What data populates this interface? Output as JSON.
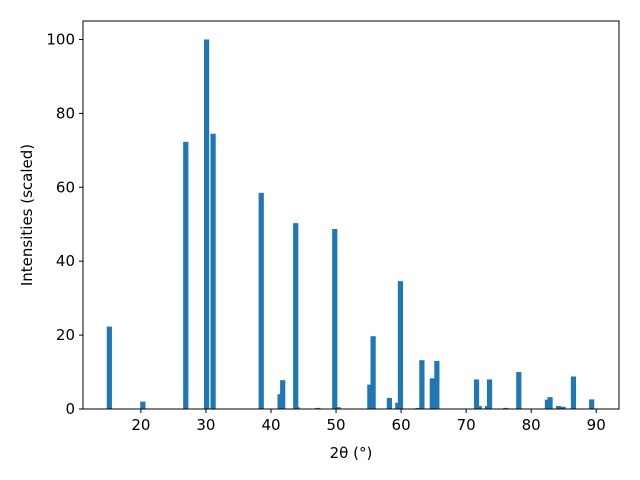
{
  "chart_data": {
    "type": "bar",
    "xlabel": "2θ (°)",
    "ylabel": "Intensities (scaled)",
    "color": "#1f77b4",
    "x": [
      15.15,
      20.3,
      26.9,
      30.1,
      31.1,
      38.5,
      41.4,
      41.8,
      43.8,
      44.0,
      47.2,
      49.8,
      50.3,
      55.2,
      55.7,
      58.2,
      59.5,
      59.9,
      62.6,
      63.2,
      64.8,
      65.5,
      71.6,
      72.0,
      73.3,
      73.6,
      76.1,
      78.1,
      82.5,
      82.9,
      84.2,
      84.9,
      86.5,
      89.3
    ],
    "values": [
      22.3,
      2.0,
      72.3,
      100,
      74.5,
      58.5,
      4.0,
      7.8,
      50.3,
      0.5,
      0.3,
      48.7,
      0.5,
      6.6,
      19.7,
      3.0,
      1.7,
      34.6,
      0.3,
      13.2,
      8.3,
      13.0,
      8.0,
      0.8,
      0.8,
      8.0,
      0.3,
      10.0,
      2.5,
      3.2,
      0.8,
      0.6,
      8.8,
      2.6
    ],
    "xlim": [
      11.1,
      93.5
    ],
    "ylim": [
      0,
      105
    ],
    "xticks": [
      20,
      30,
      40,
      50,
      60,
      70,
      80,
      90
    ],
    "yticks": [
      0,
      20,
      40,
      60,
      80,
      100
    ]
  }
}
